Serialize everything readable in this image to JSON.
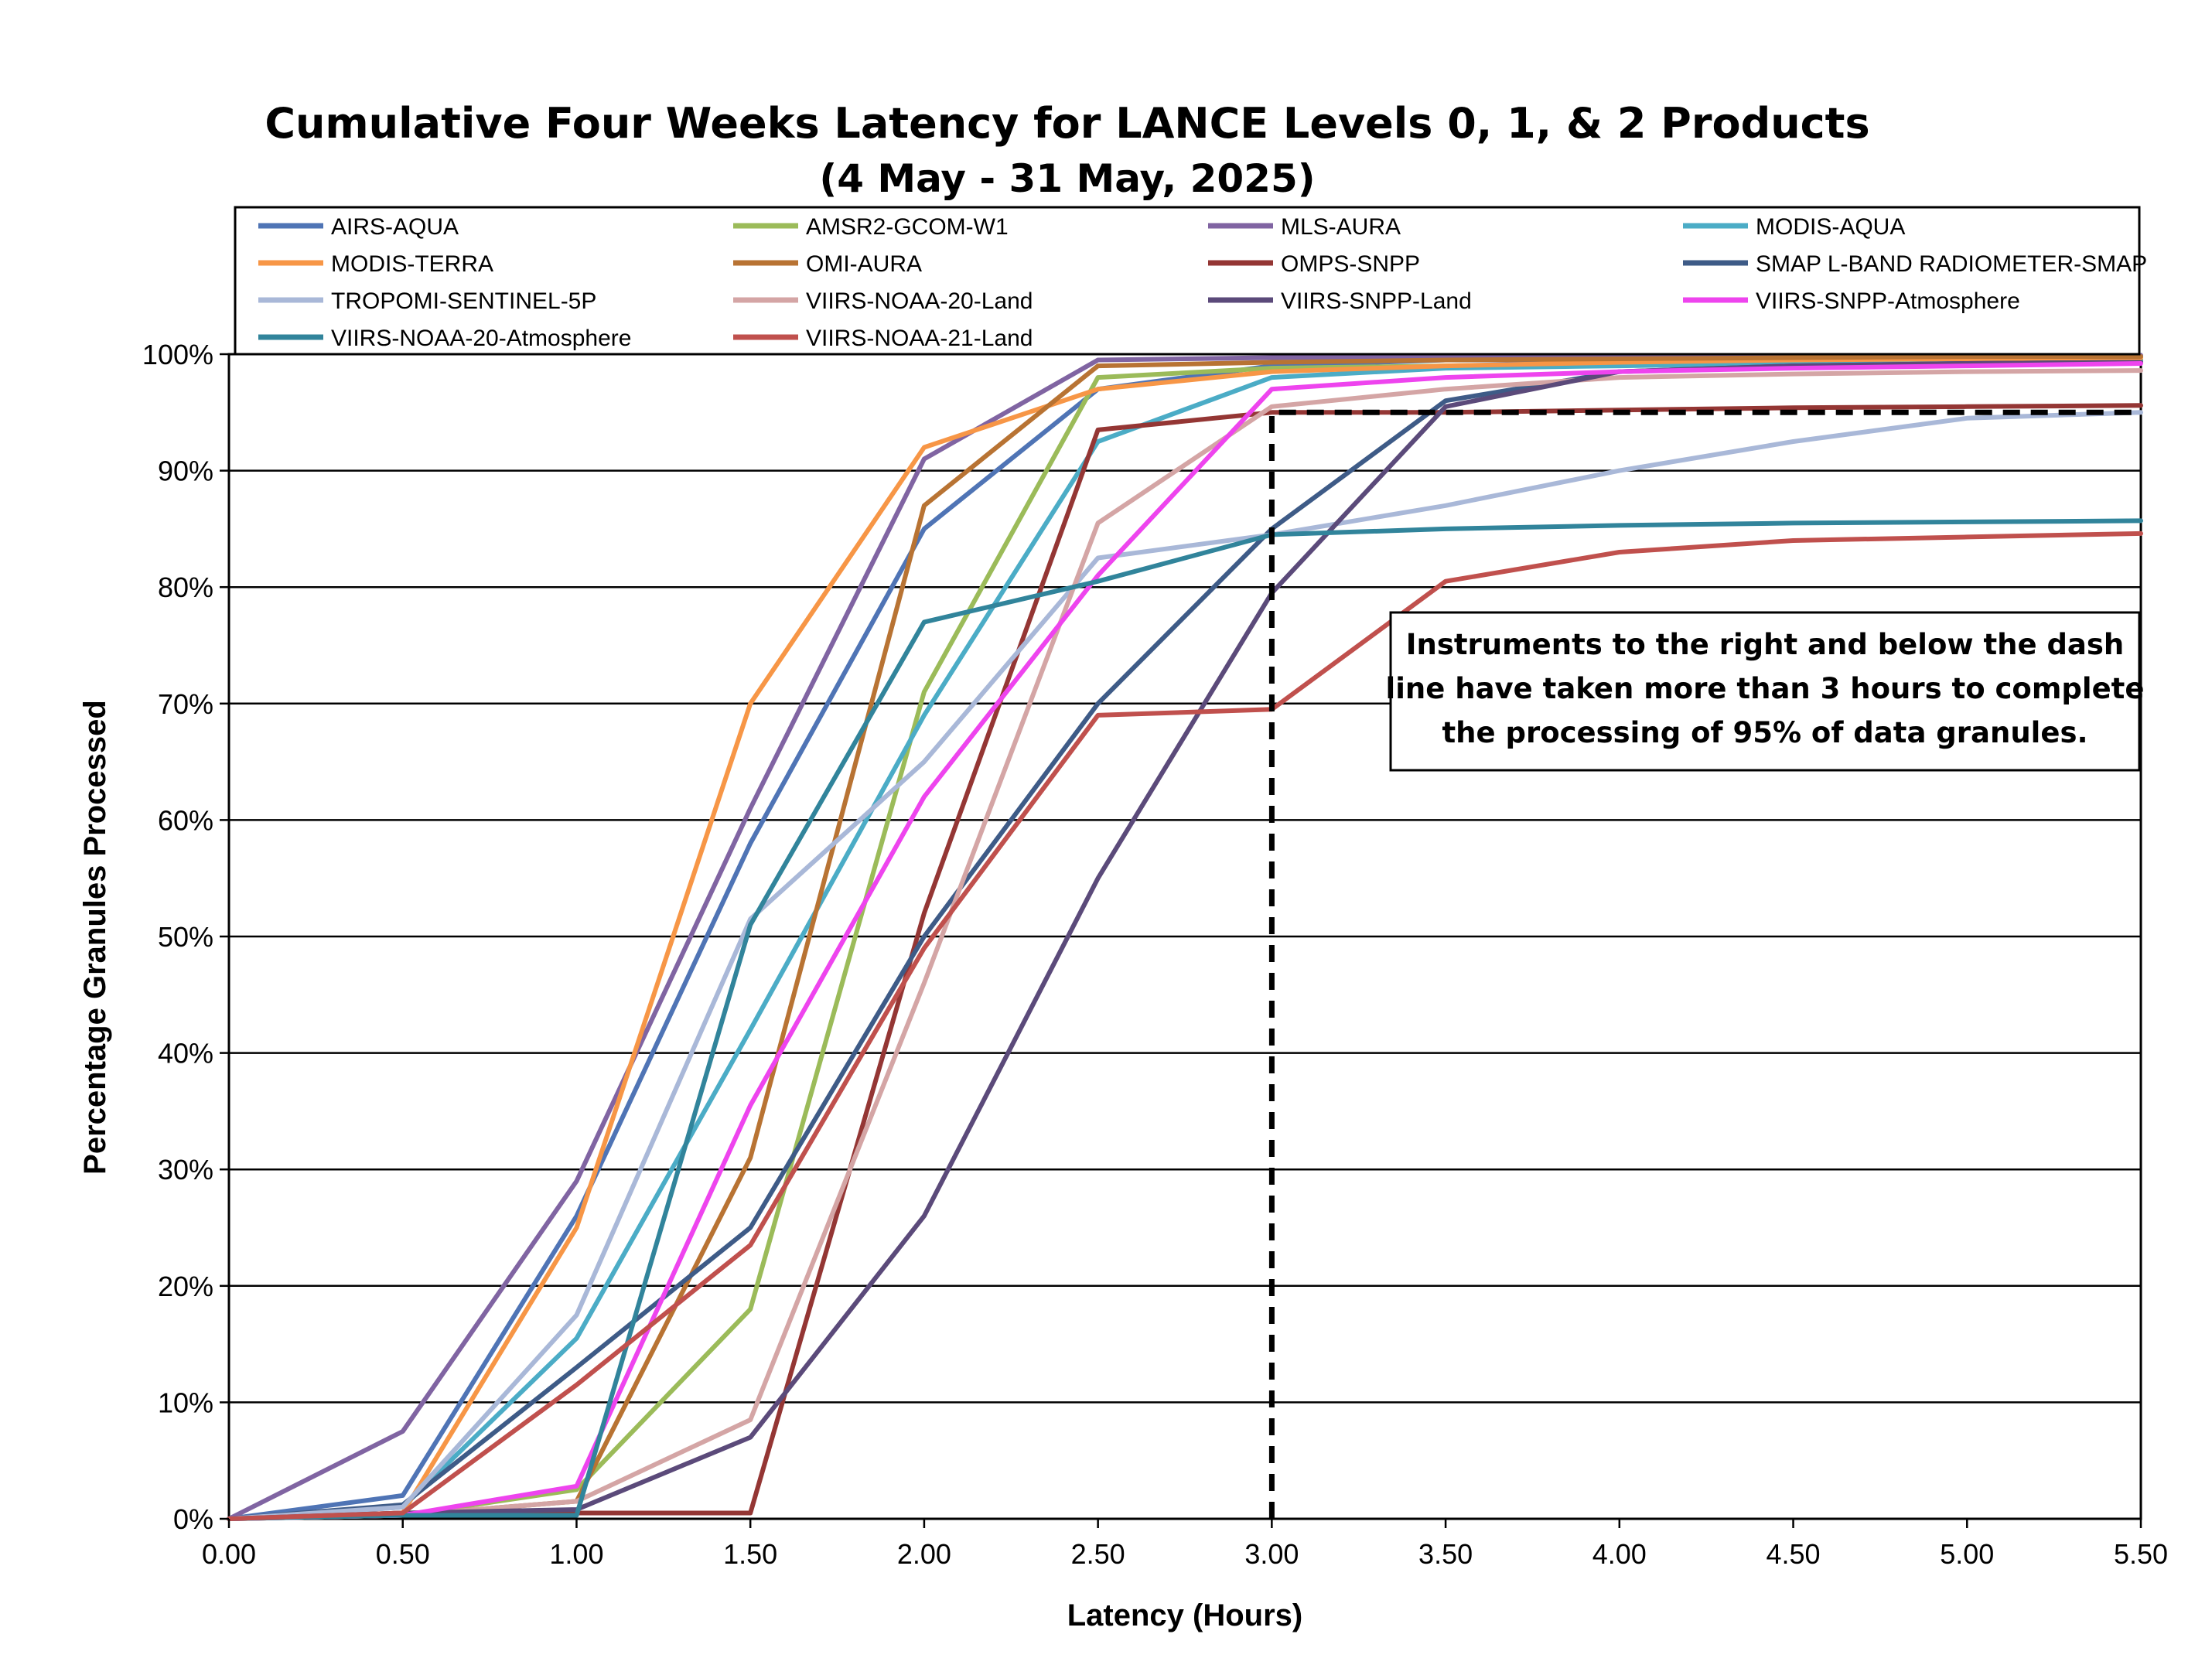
{
  "chart_data": {
    "type": "line",
    "title": "Cumulative Four Weeks Latency  for LANCE Levels 0, 1, & 2 Products",
    "subtitle": "(4  May   -  31  May,  2025)",
    "xlabel": "Latency (Hours)",
    "ylabel": "Percentage Granules Processed",
    "xlim": [
      0,
      5.5
    ],
    "ylim": [
      0,
      100
    ],
    "x_ticks": [
      "0.00",
      "0.50",
      "1.00",
      "1.50",
      "2.00",
      "2.50",
      "3.00",
      "3.50",
      "4.00",
      "4.50",
      "5.00",
      "5.50"
    ],
    "y_ticks": [
      "0%",
      "10%",
      "20%",
      "30%",
      "40%",
      "50%",
      "60%",
      "70%",
      "80%",
      "90%",
      "100%"
    ],
    "grid": "horizontal",
    "legend_position": "top",
    "x": [
      0,
      0.5,
      1.0,
      1.5,
      2.0,
      2.5,
      3.0,
      3.5,
      4.0,
      4.5,
      5.0,
      5.5
    ],
    "series": [
      {
        "name": "AIRS-AQUA",
        "color": "#4F74B5",
        "values": [
          0,
          2,
          26,
          58,
          85,
          97,
          99,
          99.5,
          99.5,
          99.5,
          99.5,
          99.5
        ]
      },
      {
        "name": "AMSR2-GCOM-W1",
        "color": "#9BBB59",
        "values": [
          0,
          0.3,
          2.5,
          18,
          71,
          98,
          98.8,
          99,
          99.2,
          99.3,
          99.4,
          99.5
        ]
      },
      {
        "name": "MLS-AURA",
        "color": "#8064A2",
        "values": [
          0,
          7.5,
          29,
          61,
          91,
          99.5,
          99.7,
          99.8,
          99.8,
          99.9,
          99.9,
          99.9
        ]
      },
      {
        "name": "MODIS-AQUA",
        "color": "#4BACC6",
        "values": [
          0,
          1,
          15.5,
          42,
          69,
          92.5,
          98,
          98.8,
          99,
          99.2,
          99.3,
          99.4
        ]
      },
      {
        "name": "MODIS-TERRA",
        "color": "#F79646",
        "values": [
          0,
          0.5,
          25,
          70,
          92,
          97,
          98.5,
          99,
          99.3,
          99.5,
          99.6,
          99.7
        ]
      },
      {
        "name": "OMI-AURA",
        "color": "#B87333",
        "values": [
          0,
          0.3,
          1.5,
          31,
          87,
          99,
          99.3,
          99.5,
          99.6,
          99.7,
          99.8,
          99.8
        ]
      },
      {
        "name": "OMPS-SNPP",
        "color": "#943634",
        "values": [
          0,
          0.5,
          0.5,
          0.5,
          52,
          93.5,
          95,
          95,
          95.2,
          95.4,
          95.5,
          95.6
        ]
      },
      {
        "name": "SMAP L-BAND RADIOMETER-SMAP",
        "color": "#3E5B87",
        "values": [
          0,
          1.2,
          13,
          25,
          50,
          70,
          85,
          96,
          98.5,
          99,
          99.2,
          99.3
        ]
      },
      {
        "name": "TROPOMI-SENTINEL-5P",
        "color": "#A9B8D8",
        "values": [
          0,
          1,
          17.5,
          51.5,
          65,
          82.5,
          84.5,
          87,
          90,
          92.5,
          94.5,
          95
        ]
      },
      {
        "name": "VIIRS-NOAA-20-Land",
        "color": "#D4A5A5",
        "values": [
          0,
          0.3,
          1.5,
          8.5,
          46,
          85.5,
          95.5,
          97,
          98,
          98.3,
          98.5,
          98.6
        ]
      },
      {
        "name": "VIIRS-SNPP-Land",
        "color": "#5B4A7A",
        "values": [
          0,
          0.5,
          0.8,
          7,
          26,
          55,
          79.5,
          95.5,
          98.5,
          99,
          99.2,
          99.3
        ]
      },
      {
        "name": "VIIRS-SNPP-Atmosphere",
        "color": "#EE44EE",
        "values": [
          0,
          0.3,
          2.8,
          35.5,
          62,
          81,
          97,
          98,
          98.5,
          98.8,
          99,
          99.2
        ]
      },
      {
        "name": "VIIRS-NOAA-20-Atmosphere",
        "color": "#31849B",
        "values": [
          0,
          0.3,
          0.3,
          51,
          77,
          80.5,
          84.5,
          85,
          85.3,
          85.5,
          85.6,
          85.7
        ]
      },
      {
        "name": "VIIRS-NOAA-21-Land",
        "color": "#C0504D",
        "values": [
          0,
          0.5,
          11.5,
          23.5,
          49,
          69,
          69.5,
          80.5,
          83,
          84,
          84.3,
          84.6
        ]
      }
    ],
    "threshold_line": {
      "x": [
        3.0,
        3.0,
        5.5
      ],
      "y": [
        0,
        95,
        95
      ]
    },
    "annotation": [
      "Instruments to the right and below the dash",
      "line have taken more than 3 hours to complete",
      "the processing of 95% of data granules."
    ]
  }
}
